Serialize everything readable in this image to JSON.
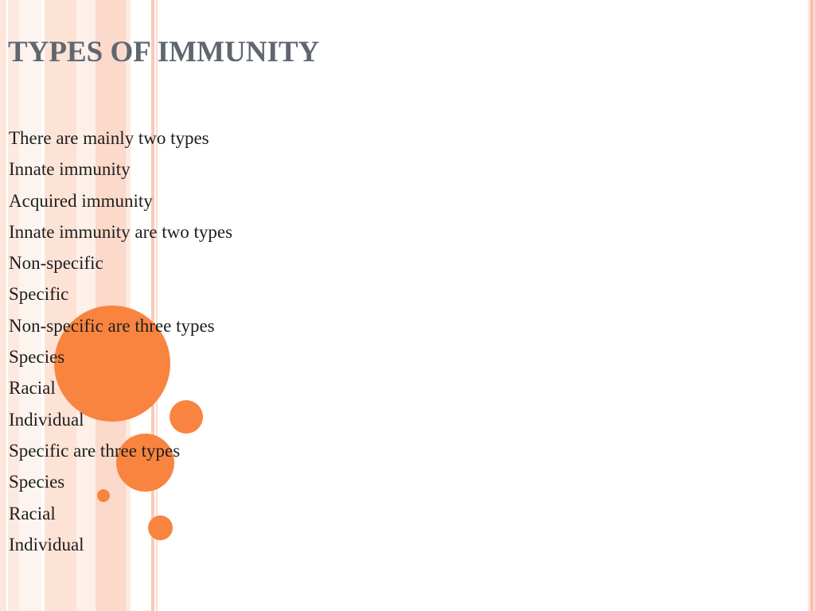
{
  "slide": {
    "title": "TYPES OF IMMUNITY",
    "lines": [
      "There are mainly two types",
      "Innate immunity",
      "Acquired immunity",
      "Innate immunity are two types",
      "Non-specific",
      "Specific",
      "Non-specific are three types",
      "Species",
      "Racial",
      "Individual",
      "Specific are three types",
      "Species",
      "Racial",
      "Individual"
    ]
  },
  "theme": {
    "title_color": "#5f6670",
    "accent_color": "#f9843f",
    "stripe_color": "#fbd9cb"
  }
}
